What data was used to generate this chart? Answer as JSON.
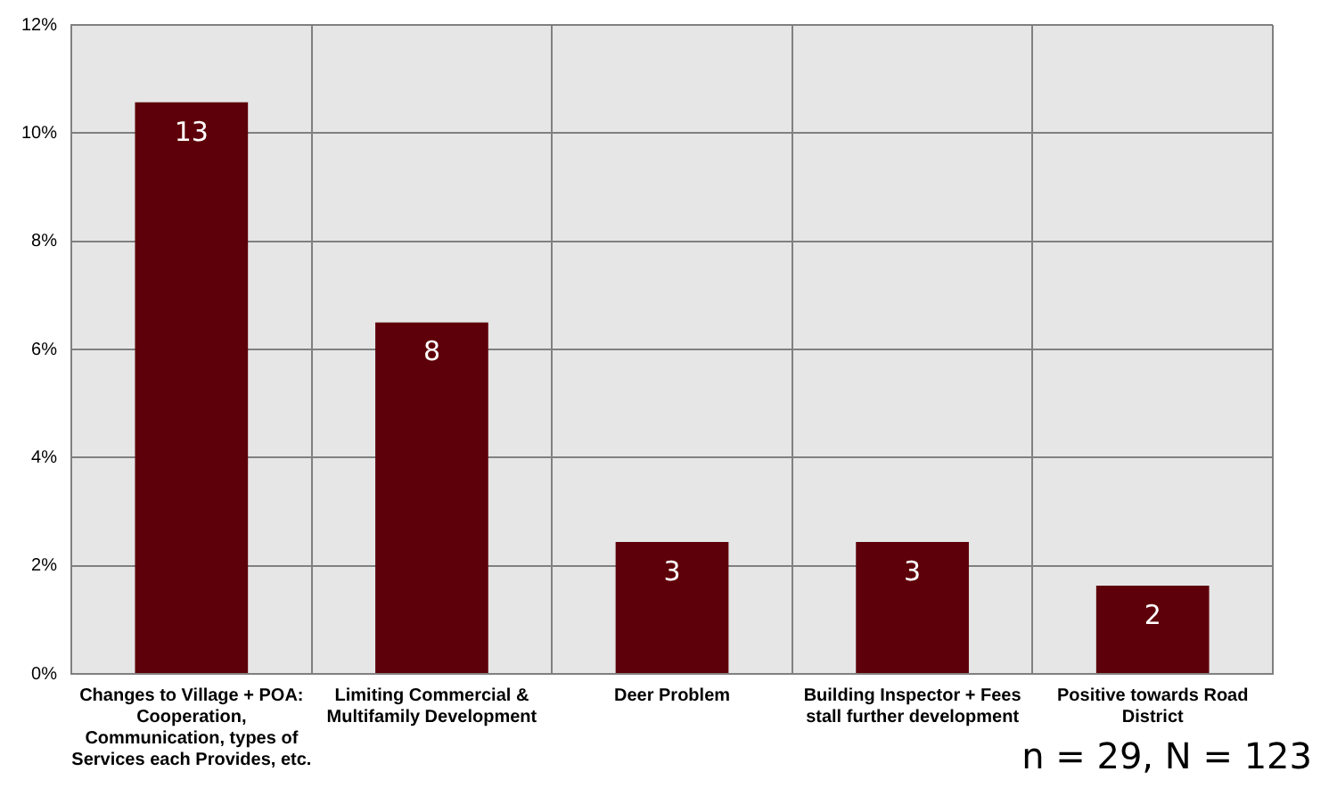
{
  "chart_data": {
    "type": "bar",
    "categories": [
      "Changes to Village + POA: Cooperation, Communication, types of Services each Provides, etc.",
      "Limiting Commercial & Multifamily Development",
      "Deer Problem",
      "Building Inspector + Fees stall further development",
      "Positive towards Road District"
    ],
    "values": [
      10.57,
      6.5,
      2.44,
      2.44,
      1.63
    ],
    "color": "#5e0009",
    "ylim": [
      0,
      12
    ],
    "yticks": [
      {
        "value": 0,
        "label": "0%"
      },
      {
        "value": 2,
        "label": "2%"
      },
      {
        "value": 4,
        "label": "4%"
      },
      {
        "value": 6,
        "label": "6%"
      },
      {
        "value": 8,
        "label": "8%"
      },
      {
        "value": 10,
        "label": "10%"
      },
      {
        "value": 12,
        "label": "12%"
      }
    ],
    "grid": true,
    "annotations": [
      "n = 29, N = 123",
      {
        "text": "13",
        "x": "Changes to Village + POA: Cooperation, Communication, types of Services each Provides, etc.",
        "y": 10.57
      },
      {
        "text": "8",
        "x": "Limiting Commercial & Multifamily Development",
        "y": 6.5
      },
      {
        "text": "3",
        "x": "Deer Problem",
        "y": 2.44
      },
      {
        "text": "3",
        "x": "Building Inspector + Fees stall further development",
        "y": 2.44
      },
      {
        "text": "2",
        "x": "Positive towards Road District",
        "y": 1.63
      }
    ]
  }
}
